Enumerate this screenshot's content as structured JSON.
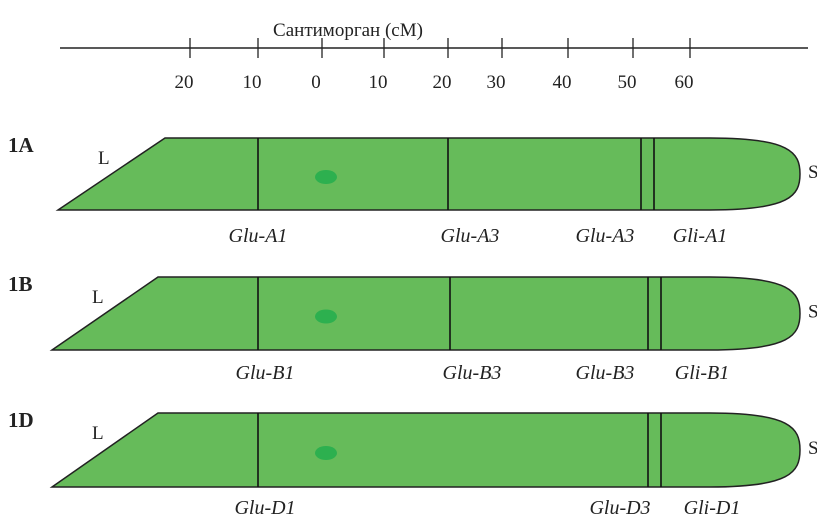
{
  "scale": {
    "title": "Сантиморган (сМ)",
    "ticks": [
      "20",
      "10",
      "0",
      "10",
      "20",
      "30",
      "40",
      "50",
      "60"
    ]
  },
  "chromosomes": [
    {
      "name": "1A",
      "left_arm": "L",
      "right_arm": "S",
      "genes": [
        "Glu-A1",
        "Glu-A3",
        "Glu-A3",
        "Gli-A1"
      ]
    },
    {
      "name": "1B",
      "left_arm": "L",
      "right_arm": "S",
      "genes": [
        "Glu-B1",
        "Glu-B3",
        "Glu-B3",
        "Gli-B1"
      ]
    },
    {
      "name": "1D",
      "left_arm": "L",
      "right_arm": "S",
      "genes": [
        "Glu-D1",
        "Glu-D3",
        "Gli-D1"
      ]
    }
  ]
}
